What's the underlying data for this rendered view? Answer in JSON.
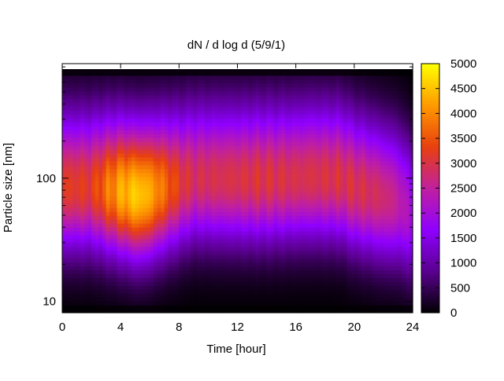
{
  "chart_data": {
    "type": "heatmap",
    "title": "dN / d log d (5/9/1)",
    "xlabel": "Time [hour]",
    "ylabel": "Particle size [nm]",
    "xlim": [
      0,
      24
    ],
    "ylim": [
      8.1,
      850
    ],
    "y_scale": "log",
    "x_ticks": [
      0,
      4,
      8,
      12,
      16,
      20,
      24
    ],
    "y_ticks": [
      10,
      100
    ],
    "colorbar": {
      "range": [
        0,
        5000
      ],
      "ticks": [
        0,
        500,
        1000,
        1500,
        2000,
        2500,
        3000,
        3500,
        4000,
        4500,
        5000
      ],
      "colors": [
        "#000000",
        "#5a008f",
        "#8f00ff",
        "#c0209f",
        "#e8400f",
        "#ff9900",
        "#ffff00"
      ]
    },
    "profile": {
      "description_free": true,
      "time_h": [
        0,
        2,
        4,
        5.2,
        6,
        8,
        9,
        12,
        14,
        16,
        17,
        19,
        20,
        22,
        23,
        24
      ],
      "peak_diameter_nm": [
        85,
        85,
        78,
        72,
        75,
        90,
        100,
        98,
        98,
        100,
        102,
        100,
        85,
        70,
        65,
        50
      ],
      "peak_value": [
        3200,
        3200,
        4300,
        4600,
        4300,
        3200,
        2900,
        3000,
        3050,
        2950,
        3000,
        3000,
        3000,
        2800,
        2500,
        2000
      ]
    }
  }
}
